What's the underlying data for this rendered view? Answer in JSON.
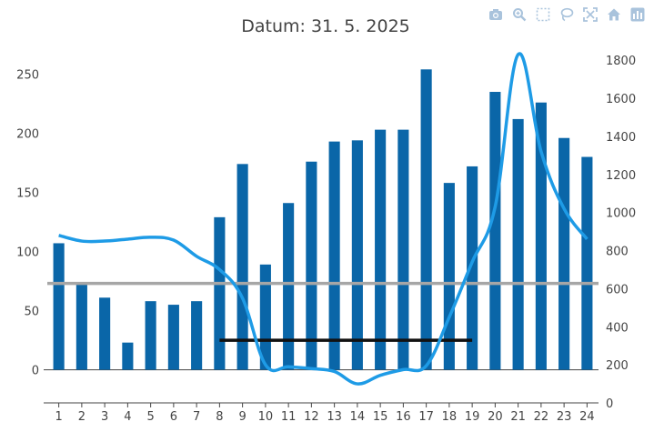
{
  "title": "Datum: 31. 5. 2025",
  "modebar": [
    {
      "name": "camera-icon"
    },
    {
      "name": "zoom-icon"
    },
    {
      "name": "box-select-icon"
    },
    {
      "name": "lasso-select-icon"
    },
    {
      "name": "autoscale-icon"
    },
    {
      "name": "reset-axes-icon"
    },
    {
      "name": "plotly-logo-icon"
    }
  ],
  "colors": {
    "bar": "#0a66a8",
    "line": "#1e9be6",
    "threshold_gray": "#a6a6a6",
    "threshold_black": "#111111"
  },
  "chart_data": {
    "type": "bar",
    "categories": [
      "1",
      "2",
      "3",
      "4",
      "5",
      "6",
      "7",
      "8",
      "9",
      "10",
      "11",
      "12",
      "13",
      "14",
      "15",
      "16",
      "17",
      "18",
      "19",
      "20",
      "21",
      "22",
      "23",
      "24"
    ],
    "y_left": {
      "range": [
        -28,
        265
      ],
      "ticks": [
        0,
        50,
        100,
        150,
        200,
        250
      ]
    },
    "y_right": {
      "range": [
        0,
        1820
      ],
      "ticks": [
        0,
        200,
        400,
        600,
        800,
        1000,
        1200,
        1400,
        1600,
        1800
      ]
    },
    "series": [
      {
        "type": "bar",
        "axis": "left",
        "values": [
          107,
          72,
          61,
          23,
          58,
          55,
          58,
          129,
          174,
          89,
          141,
          176,
          193,
          194,
          203,
          203,
          254,
          158,
          172,
          235,
          212,
          226,
          196,
          180
        ]
      },
      {
        "type": "line",
        "axis": "right",
        "values": [
          880,
          850,
          850,
          860,
          870,
          855,
          770,
          700,
          550,
          200,
          190,
          180,
          165,
          100,
          145,
          175,
          195,
          450,
          740,
          1030,
          1830,
          1320,
          1020,
          860
        ]
      }
    ],
    "reference_lines": [
      {
        "color": "gray",
        "axis": "left",
        "y": 73,
        "x_from": "1",
        "x_to": "24"
      },
      {
        "color": "black",
        "axis": "left",
        "y": 25,
        "x_from": "8",
        "x_to": "19"
      }
    ],
    "zero_line": true
  }
}
